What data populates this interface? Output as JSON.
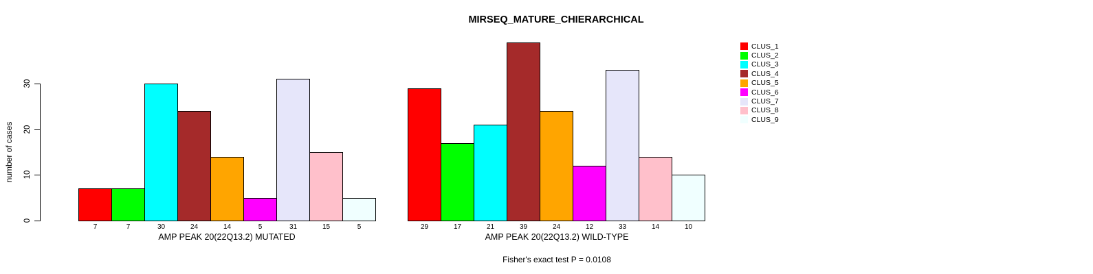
{
  "title": "MIRSEQ_MATURE_CHIERARCHICAL",
  "chart_data": {
    "type": "bar",
    "title": "MIRSEQ_MATURE_CHIERARCHICAL",
    "ylabel": "number of cases",
    "ylim": [
      0,
      30
    ],
    "yticks": [
      0,
      10,
      20,
      30
    ],
    "grid": false,
    "legend_position": "right",
    "categories": [
      "CLUS_1",
      "CLUS_2",
      "CLUS_3",
      "CLUS_4",
      "CLUS_5",
      "CLUS_6",
      "CLUS_7",
      "CLUS_8",
      "CLUS_9"
    ],
    "colors": [
      "#FF0000",
      "#00FF00",
      "#00FFFF",
      "#A52A2A",
      "#FFA500",
      "#FF00FF",
      "#E6E6FA",
      "#FFC0CB",
      "#F0FFFF"
    ],
    "panels": [
      {
        "xlabel": "AMP PEAK 20(22Q13.2) MUTATED",
        "values": [
          7,
          7,
          30,
          24,
          14,
          5,
          31,
          15,
          5
        ]
      },
      {
        "xlabel": "AMP PEAK 20(22Q13.2) WILD-TYPE",
        "values": [
          29,
          17,
          21,
          39,
          24,
          12,
          33,
          14,
          10
        ]
      }
    ],
    "annotation": "Fisher's exact test P = 0.0108"
  }
}
